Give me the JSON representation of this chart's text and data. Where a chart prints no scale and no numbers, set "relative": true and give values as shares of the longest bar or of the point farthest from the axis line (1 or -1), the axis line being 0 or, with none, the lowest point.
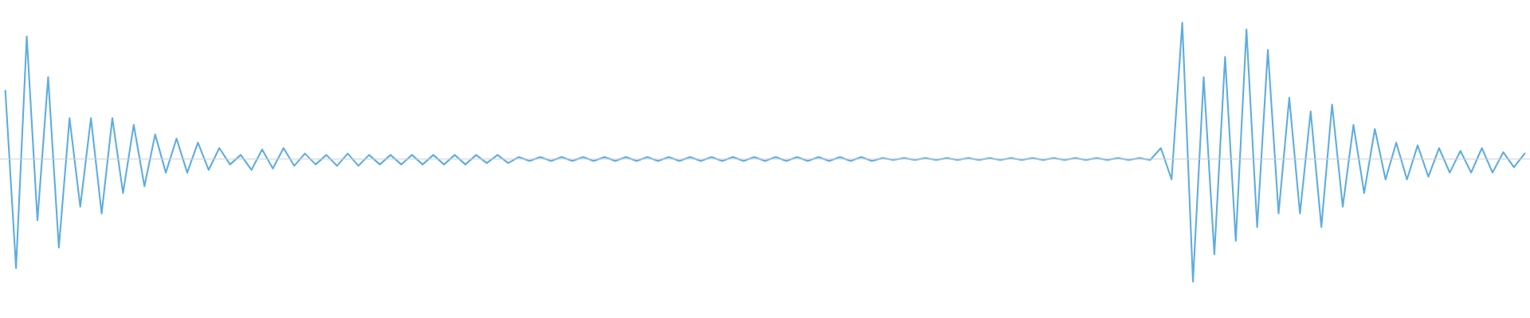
{
  "chart_data": {
    "type": "line",
    "relative": true,
    "categories": [
      null,
      null,
      null,
      null,
      null,
      null,
      null,
      null,
      null,
      null,
      null,
      null,
      null,
      null,
      null,
      null,
      null,
      null,
      null,
      null,
      null,
      null,
      null,
      null,
      null,
      null,
      null,
      null,
      null,
      null,
      null,
      null,
      null,
      null,
      null,
      null,
      null,
      null,
      null,
      null,
      null,
      null,
      null,
      null,
      null,
      null,
      null,
      null,
      null,
      null,
      null,
      null,
      null,
      null,
      null,
      null,
      null,
      null,
      null,
      null,
      null,
      null,
      null,
      null,
      null,
      null,
      null,
      null,
      null,
      null,
      null,
      null,
      null,
      null,
      null,
      null,
      null,
      null,
      null,
      null,
      null,
      null,
      null,
      null,
      null,
      null,
      null,
      null,
      null,
      null,
      null,
      null,
      null,
      null,
      null,
      null,
      null,
      null,
      null,
      null,
      null,
      null,
      null,
      null,
      null,
      null,
      null,
      null,
      null,
      null,
      null,
      null,
      null,
      null,
      null,
      null,
      null,
      null,
      null,
      null,
      null,
      null,
      null,
      null,
      null,
      null,
      null,
      null,
      null,
      null,
      null,
      null,
      null,
      null,
      null,
      null,
      null,
      null,
      null,
      null,
      null,
      null,
      null
    ],
    "series": [
      {
        "color": "#5dade2",
        "values": [
          0.5,
          -0.8,
          0.9,
          -0.45,
          0.6,
          -0.65,
          0.3,
          -0.35,
          0.3,
          -0.4,
          0.3,
          -0.25,
          0.25,
          -0.2,
          0.18,
          -0.1,
          0.15,
          -0.1,
          0.12,
          -0.08,
          0.08,
          -0.04,
          0.03,
          -0.08,
          0.07,
          -0.07,
          0.08,
          -0.05,
          0.04,
          -0.04,
          0.03,
          -0.05,
          0.04,
          -0.05,
          0.03,
          -0.04,
          0.03,
          -0.04,
          0.03,
          -0.04,
          0.03,
          -0.04,
          0.03,
          -0.04,
          0.03,
          -0.03,
          0.03,
          -0.03,
          0.015,
          -0.015,
          0.015,
          -0.015,
          0.015,
          -0.015,
          0.015,
          -0.015,
          0.015,
          -0.015,
          0.015,
          -0.015,
          0.015,
          -0.015,
          0.015,
          -0.015,
          0.015,
          -0.015,
          0.015,
          -0.015,
          0.015,
          -0.015,
          0.015,
          -0.015,
          0.015,
          -0.015,
          0.015,
          -0.015,
          0.015,
          -0.015,
          0.015,
          -0.015,
          0.015,
          -0.015,
          0.007,
          -0.007,
          0.007,
          -0.007,
          0.007,
          -0.007,
          0.007,
          -0.007,
          0.007,
          -0.007,
          0.007,
          -0.007,
          0.007,
          -0.007,
          0.007,
          -0.007,
          0.007,
          -0.007,
          0.007,
          -0.007,
          0.007,
          -0.007,
          0.007,
          -0.007,
          0.007,
          -0.007,
          0.08,
          -0.15,
          1,
          -0.9,
          0.6,
          -0.7,
          0.75,
          -0.6,
          0.95,
          -0.5,
          0.8,
          -0.4,
          0.45,
          -0.4,
          0.35,
          -0.5,
          0.4,
          -0.35,
          0.25,
          -0.25,
          0.22,
          -0.15,
          0.12,
          -0.15,
          0.1,
          -0.13,
          0.08,
          -0.1,
          0.06,
          -0.1,
          0.08,
          -0.1,
          0.05,
          -0.06,
          0.04
        ]
      }
    ]
  }
}
